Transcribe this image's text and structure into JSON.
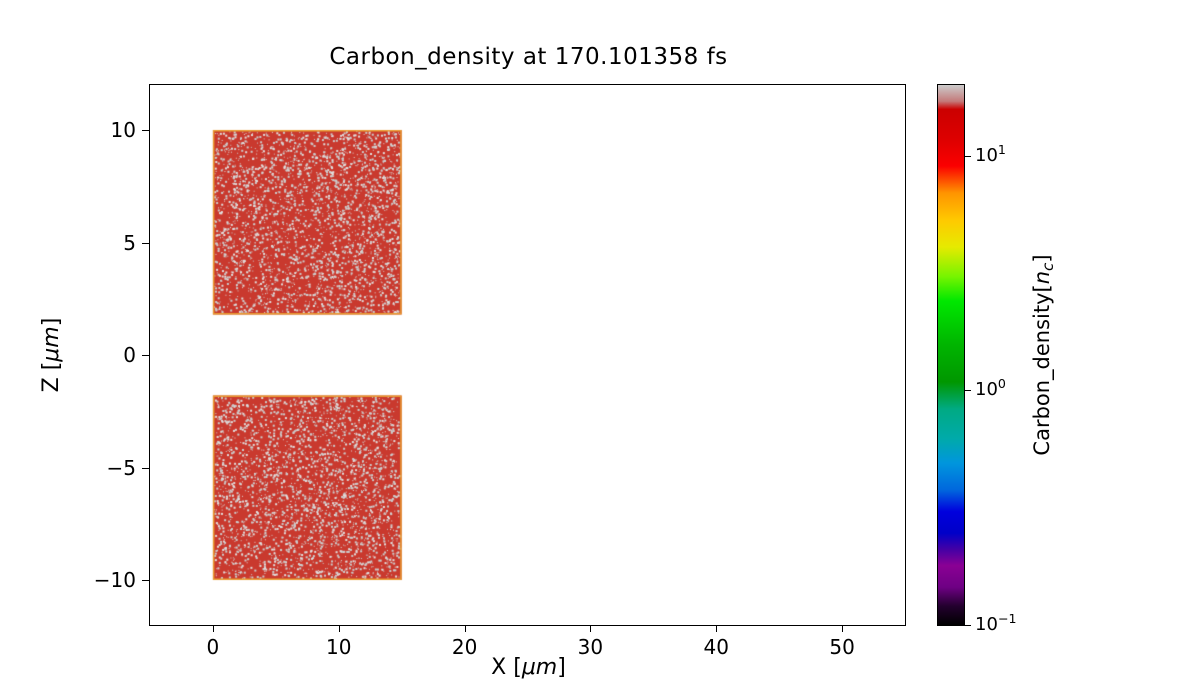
{
  "chart_data": {
    "type": "heatmap",
    "title": "Carbon_density at 170.101358 fs",
    "xlabel": {
      "prefix": "X [",
      "unit": "μm",
      "suffix": "]"
    },
    "ylabel": {
      "prefix": "Z [",
      "unit": "μm",
      "suffix": "]"
    },
    "xlim": [
      -5,
      55
    ],
    "ylim": [
      -12,
      12
    ],
    "xticks": [
      {
        "v": 0,
        "label": "0"
      },
      {
        "v": 10,
        "label": "10"
      },
      {
        "v": 20,
        "label": "20"
      },
      {
        "v": 30,
        "label": "30"
      },
      {
        "v": 40,
        "label": "40"
      },
      {
        "v": 50,
        "label": "50"
      }
    ],
    "yticks": [
      {
        "v": 10,
        "label": "10"
      },
      {
        "v": 5,
        "label": "5"
      },
      {
        "v": 0,
        "label": "0"
      },
      {
        "v": -5,
        "label": "−5"
      },
      {
        "v": -10,
        "label": "−10"
      }
    ],
    "grid": false,
    "blocks": [
      {
        "x0": 0,
        "x1": 15,
        "z0": 1.8,
        "z1": 10,
        "value_nc": 10
      },
      {
        "x0": 0,
        "x1": 15,
        "z0": -10,
        "z1": -1.8,
        "value_nc": 10
      }
    ],
    "colors": {
      "block_fill": "#c9392e",
      "block_speckle_1": "#cccccc",
      "block_speckle_2": "#e2dedd",
      "block_edge": "#e89b2e",
      "axes_edge": "#000000",
      "background": "#ffffff"
    },
    "colorbar": {
      "label_prefix": "Carbon_density[",
      "label_var": "n",
      "label_subscript": "c",
      "label_suffix": "]",
      "scale": "log",
      "vmin": 0.1,
      "vmax": 20,
      "ticks": [
        {
          "v": 10,
          "base": "10",
          "exp": "1"
        },
        {
          "v": 1,
          "base": "10",
          "exp": "0"
        },
        {
          "v": 0.1,
          "base": "10",
          "exp": "−1"
        }
      ],
      "colormap": "nipy_spectral",
      "stops": [
        [
          0.0,
          "#000000"
        ],
        [
          0.035,
          "#23002e"
        ],
        [
          0.07,
          "#6e0084"
        ],
        [
          0.11,
          "#8a0094"
        ],
        [
          0.14,
          "#4400a5"
        ],
        [
          0.17,
          "#0000c8"
        ],
        [
          0.21,
          "#0000dd"
        ],
        [
          0.25,
          "#0067dd"
        ],
        [
          0.3,
          "#0096dd"
        ],
        [
          0.345,
          "#00aaaa"
        ],
        [
          0.4,
          "#00aa83"
        ],
        [
          0.45,
          "#009700"
        ],
        [
          0.52,
          "#00b500"
        ],
        [
          0.6,
          "#00e800"
        ],
        [
          0.645,
          "#76f400"
        ],
        [
          0.7,
          "#e6ea00"
        ],
        [
          0.75,
          "#ffc900"
        ],
        [
          0.8,
          "#ff9400"
        ],
        [
          0.85,
          "#fb0000"
        ],
        [
          0.9,
          "#dd0000"
        ],
        [
          0.955,
          "#cb0000"
        ],
        [
          0.97,
          "#c47a7a"
        ],
        [
          1.0,
          "#cccccc"
        ]
      ]
    }
  }
}
